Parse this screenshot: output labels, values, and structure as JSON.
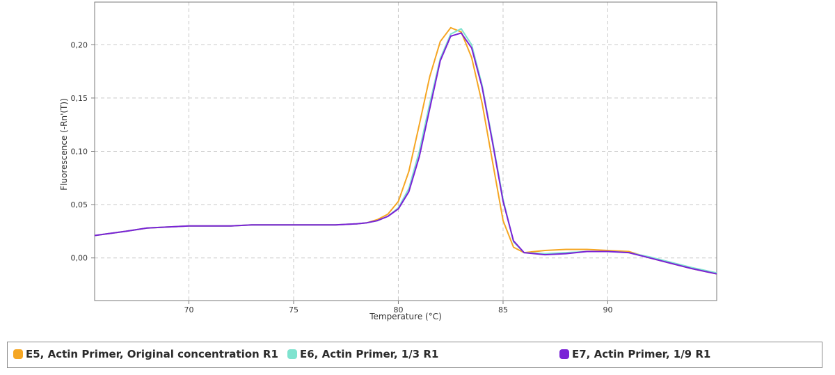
{
  "chart_data": {
    "type": "line",
    "title": "",
    "xlabel": "Temperature (°C)",
    "ylabel": "Fluorescence (-Rn'(T))",
    "xlim": [
      65.5,
      95.2
    ],
    "ylim": [
      -0.04,
      0.24
    ],
    "x_ticks": [
      70,
      75,
      80,
      85,
      90
    ],
    "x_tick_labels": [
      "70",
      "75",
      "80",
      "85",
      "90"
    ],
    "y_ticks": [
      0.0,
      0.05,
      0.1,
      0.15,
      0.2
    ],
    "y_tick_labels": [
      "0,00",
      "0,05",
      "0,10",
      "0,15",
      "0,20"
    ],
    "grid": true,
    "legend_position": "bottom",
    "series": [
      {
        "name": "E5, Actin Primer, Original concentration R1",
        "color": "#f5a623",
        "x": [
          65.5,
          67,
          68,
          69,
          70,
          71,
          72,
          73,
          74,
          75,
          76,
          77,
          78,
          78.5,
          79,
          79.5,
          80,
          80.5,
          81,
          81.5,
          82,
          82.5,
          83,
          83.5,
          84,
          84.5,
          85,
          85.5,
          86,
          87,
          88,
          89,
          90,
          91,
          92,
          93,
          94,
          95.2
        ],
        "y": [
          0.021,
          0.025,
          0.028,
          0.029,
          0.03,
          0.03,
          0.03,
          0.031,
          0.031,
          0.031,
          0.031,
          0.031,
          0.032,
          0.033,
          0.036,
          0.041,
          0.053,
          0.081,
          0.125,
          0.17,
          0.203,
          0.216,
          0.212,
          0.188,
          0.145,
          0.09,
          0.035,
          0.01,
          0.005,
          0.007,
          0.008,
          0.008,
          0.007,
          0.006,
          0.0,
          -0.005,
          -0.01,
          -0.015
        ]
      },
      {
        "name": "E6, Actin Primer, 1/3 R1",
        "color": "#7fe3cf",
        "x": [
          65.5,
          67,
          68,
          69,
          70,
          71,
          72,
          73,
          74,
          75,
          76,
          77,
          78,
          78.5,
          79,
          79.5,
          80,
          80.5,
          81,
          81.5,
          82,
          82.5,
          83,
          83.5,
          84,
          84.5,
          85,
          85.5,
          86,
          87,
          88,
          89,
          90,
          91,
          92,
          93,
          94,
          95.2
        ],
        "y": [
          0.021,
          0.025,
          0.028,
          0.029,
          0.03,
          0.03,
          0.03,
          0.031,
          0.031,
          0.031,
          0.031,
          0.031,
          0.032,
          0.033,
          0.035,
          0.039,
          0.047,
          0.065,
          0.1,
          0.145,
          0.187,
          0.21,
          0.215,
          0.2,
          0.162,
          0.11,
          0.055,
          0.015,
          0.005,
          0.004,
          0.005,
          0.006,
          0.006,
          0.005,
          0.001,
          -0.004,
          -0.009,
          -0.014
        ]
      },
      {
        "name": "E7, Actin Primer, 1/9 R1",
        "color": "#7a22d6",
        "x": [
          65.5,
          67,
          68,
          69,
          70,
          71,
          72,
          73,
          74,
          75,
          76,
          77,
          78,
          78.5,
          79,
          79.5,
          80,
          80.5,
          81,
          81.5,
          82,
          82.5,
          83,
          83.5,
          84,
          84.5,
          85,
          85.5,
          86,
          87,
          88,
          89,
          90,
          91,
          92,
          93,
          94,
          95.2
        ],
        "y": [
          0.021,
          0.025,
          0.028,
          0.029,
          0.03,
          0.03,
          0.03,
          0.031,
          0.031,
          0.031,
          0.031,
          0.031,
          0.032,
          0.033,
          0.035,
          0.039,
          0.046,
          0.062,
          0.095,
          0.14,
          0.185,
          0.208,
          0.211,
          0.197,
          0.16,
          0.108,
          0.053,
          0.016,
          0.005,
          0.003,
          0.004,
          0.006,
          0.006,
          0.005,
          0.0,
          -0.005,
          -0.01,
          -0.015
        ]
      }
    ]
  }
}
